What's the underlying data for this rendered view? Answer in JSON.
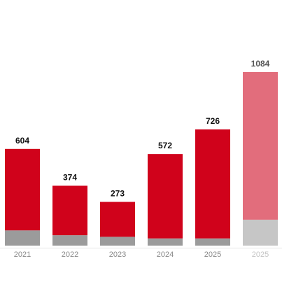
{
  "chart_data": {
    "type": "bar",
    "stacked": true,
    "categories": [
      "2021",
      "2022",
      "2023",
      "2024",
      "2025",
      "2025"
    ],
    "totals": [
      604,
      374,
      273,
      572,
      726,
      1084
    ],
    "series": [
      {
        "values": [
          95,
          65,
          55,
          45,
          45,
          162
        ]
      },
      {
        "values": [
          509,
          309,
          218,
          527,
          681,
          922
        ]
      }
    ],
    "projected": [
      false,
      false,
      false,
      false,
      false,
      true
    ],
    "colors": {
      "primary": "#d0021b",
      "secondary": "#9b9b9b",
      "projected_primary": "#e26d7c",
      "projected_secondary": "#c6c6c6",
      "label": "#111111",
      "projected_label": "#555555",
      "tick": "#888888",
      "projected_tick": "#c4c4c4",
      "axis": "#e6e6e6"
    },
    "title": "",
    "xlabel": "",
    "ylabel": "",
    "ylim": [
      0,
      1084
    ],
    "grid": false,
    "legend": "none"
  }
}
